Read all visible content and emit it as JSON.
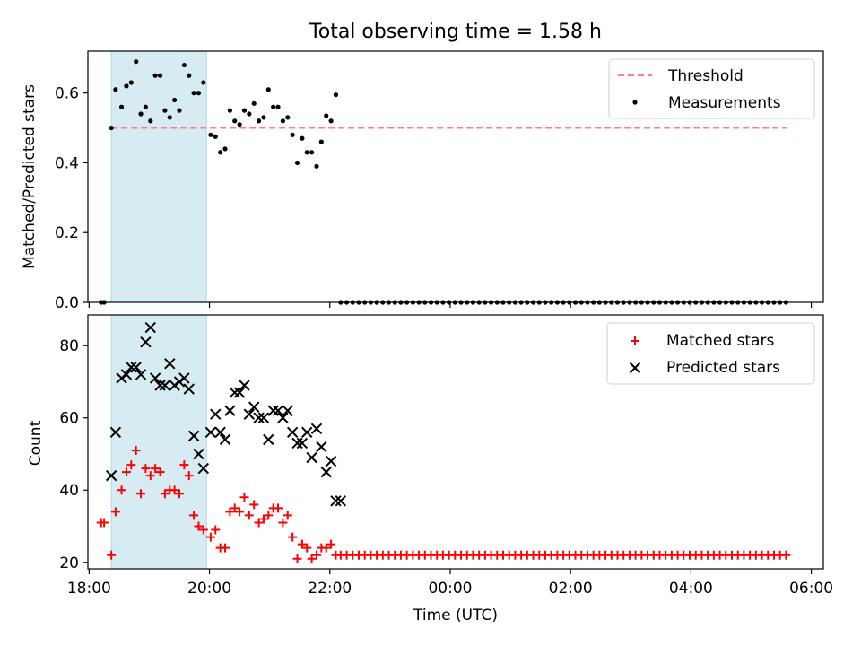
{
  "figure": {
    "title": "Total observing time = 1.58 h",
    "xlabel": "Time (UTC)",
    "x_ticks": [
      "18:00",
      "20:00",
      "22:00",
      "00:00",
      "02:00",
      "04:00",
      "06:00"
    ],
    "x_tick_hours": [
      18,
      20,
      22,
      24,
      26,
      28,
      30
    ],
    "xlim": [
      17.98,
      30.2
    ],
    "shaded_span": [
      18.37,
      19.95
    ],
    "shade_color": "#add8e6",
    "threshold_color": "#ff7f7f",
    "matched_color": "#ff0000",
    "predicted_color": "#000000"
  },
  "chart_data": [
    {
      "type": "scatter",
      "ylabel": "Matched/Predicted stars",
      "ylim": [
        0,
        0.72
      ],
      "y_ticks": [
        0.0,
        0.2,
        0.4,
        0.6
      ],
      "y_tick_labels": [
        "0.0",
        "0.2",
        "0.4",
        "0.6"
      ],
      "legend": {
        "position": "top-right",
        "threshold_label": "Threshold",
        "measurements_label": "Measurements"
      },
      "threshold": {
        "value": 0.5,
        "x_range": [
          18.37,
          29.6
        ]
      },
      "measurements": {
        "x": [
          18.2,
          18.25,
          18.37,
          18.44,
          18.54,
          18.62,
          18.7,
          18.78,
          18.86,
          18.94,
          19.02,
          19.1,
          19.18,
          19.26,
          19.34,
          19.42,
          19.5,
          19.58,
          19.66,
          19.74,
          19.82,
          19.9,
          20.02,
          20.1,
          20.18,
          20.26,
          20.34,
          20.42,
          20.5,
          20.58,
          20.66,
          20.74,
          20.82,
          20.9,
          20.98,
          21.06,
          21.14,
          21.22,
          21.3,
          21.38,
          21.46,
          21.54,
          21.62,
          21.7,
          21.78,
          21.86,
          21.94,
          22.02,
          22.1,
          22.18
        ],
        "y": [
          0.0,
          0.0,
          0.5,
          0.61,
          0.56,
          0.62,
          0.63,
          0.69,
          0.54,
          0.56,
          0.52,
          0.65,
          0.65,
          0.55,
          0.53,
          0.58,
          0.55,
          0.68,
          0.65,
          0.6,
          0.6,
          0.63,
          0.48,
          0.475,
          0.43,
          0.44,
          0.55,
          0.52,
          0.51,
          0.55,
          0.54,
          0.57,
          0.52,
          0.53,
          0.61,
          0.56,
          0.56,
          0.52,
          0.53,
          0.48,
          0.4,
          0.47,
          0.43,
          0.43,
          0.39,
          0.46,
          0.535,
          0.52,
          0.595,
          0.0
        ]
      },
      "zero_series": {
        "x_start": 22.28,
        "x_end": 29.62,
        "step": 0.1,
        "y": 0.0
      }
    },
    {
      "type": "scatter",
      "ylabel": "Count",
      "ylim": [
        18.2,
        88.5
      ],
      "y_ticks": [
        20,
        40,
        60,
        80
      ],
      "y_tick_labels": [
        "20",
        "40",
        "60",
        "80"
      ],
      "legend": {
        "position": "top-right",
        "matched_label": "Matched stars",
        "predicted_label": "Predicted stars"
      },
      "matched": {
        "x": [
          18.2,
          18.25,
          18.37,
          18.44,
          18.54,
          18.62,
          18.7,
          18.78,
          18.86,
          18.94,
          19.02,
          19.1,
          19.18,
          19.26,
          19.34,
          19.42,
          19.5,
          19.58,
          19.66,
          19.74,
          19.82,
          19.9,
          20.02,
          20.1,
          20.18,
          20.26,
          20.34,
          20.42,
          20.5,
          20.58,
          20.66,
          20.74,
          20.82,
          20.9,
          20.98,
          21.06,
          21.14,
          21.22,
          21.3,
          21.38,
          21.46,
          21.54,
          21.62,
          21.7,
          21.78,
          21.86,
          21.94,
          22.02,
          22.1,
          22.18
        ],
        "y": [
          31,
          31,
          22,
          34,
          40,
          45,
          47,
          51,
          39,
          46,
          44,
          46,
          45,
          39,
          40,
          40,
          39,
          47,
          44,
          33,
          30,
          29,
          27,
          29,
          24,
          24,
          34,
          35,
          34,
          38,
          33,
          36,
          31,
          32,
          33,
          35,
          35,
          31,
          33,
          27,
          21,
          25,
          24,
          21,
          22,
          24,
          24,
          25,
          22,
          22
        ]
      },
      "matched_tail": {
        "x_start": 22.28,
        "x_end": 29.62,
        "step": 0.1,
        "y": 22
      },
      "predicted": {
        "x": [
          18.37,
          18.44,
          18.54,
          18.62,
          18.7,
          18.78,
          18.86,
          18.94,
          19.02,
          19.1,
          19.18,
          19.26,
          19.34,
          19.42,
          19.5,
          19.58,
          19.66,
          19.74,
          19.82,
          19.9,
          20.02,
          20.1,
          20.18,
          20.26,
          20.34,
          20.42,
          20.5,
          20.58,
          20.66,
          20.74,
          20.82,
          20.9,
          20.98,
          21.06,
          21.14,
          21.22,
          21.3,
          21.38,
          21.46,
          21.54,
          21.62,
          21.7,
          21.78,
          21.86,
          21.94,
          22.02,
          22.1,
          22.18
        ],
        "y": [
          44,
          56,
          71,
          72,
          74,
          74,
          72,
          81,
          85,
          71,
          69,
          69,
          75,
          69,
          70,
          71,
          68,
          55,
          50,
          46,
          56,
          61,
          56,
          54,
          62,
          67,
          67,
          69,
          61,
          63,
          60,
          60,
          54,
          62,
          62,
          60,
          62,
          56,
          53,
          53,
          56,
          49,
          57,
          52,
          45,
          48,
          37,
          37
        ]
      }
    }
  ]
}
